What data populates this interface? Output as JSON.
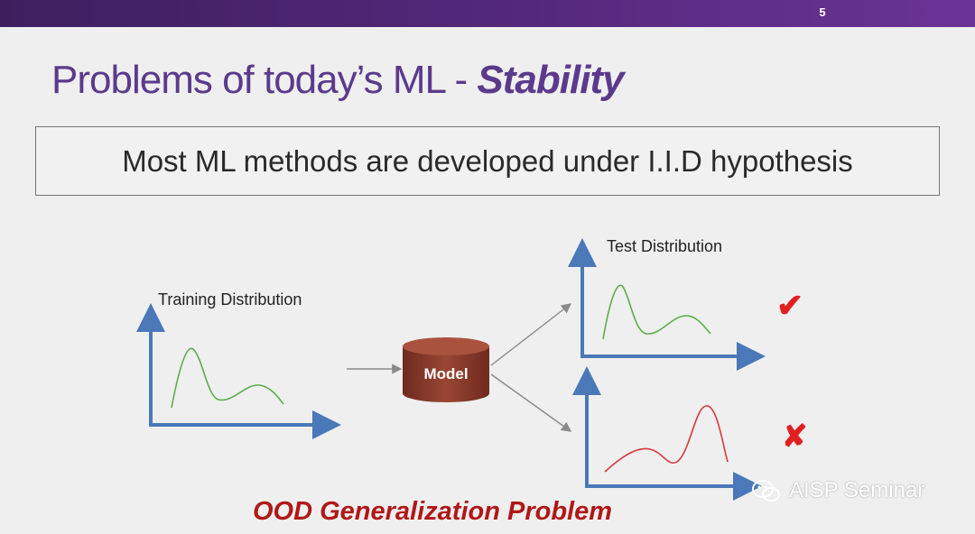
{
  "slide": {
    "page_number": "5",
    "title_plain": "Problems of today’s ML - ",
    "title_emphasis": "Stability",
    "hypothesis": "Most ML methods are developed under I.I.D hypothesis"
  },
  "diagram": {
    "training_label": "Training Distribution",
    "test_label": "Test Distribution",
    "model_label": "Model",
    "success_mark": "✔",
    "failure_mark": "✘"
  },
  "footer": {
    "problem_label": "OOD Generalization Problem",
    "watermark_text": "AISP Seminar"
  },
  "colors": {
    "title": "#5b3a8c",
    "axis": "#4a78b8",
    "green_curve": "#5cae4a",
    "red_curve": "#d63a3a",
    "model": "#8a3a2a",
    "ood_text": "#b01818"
  }
}
